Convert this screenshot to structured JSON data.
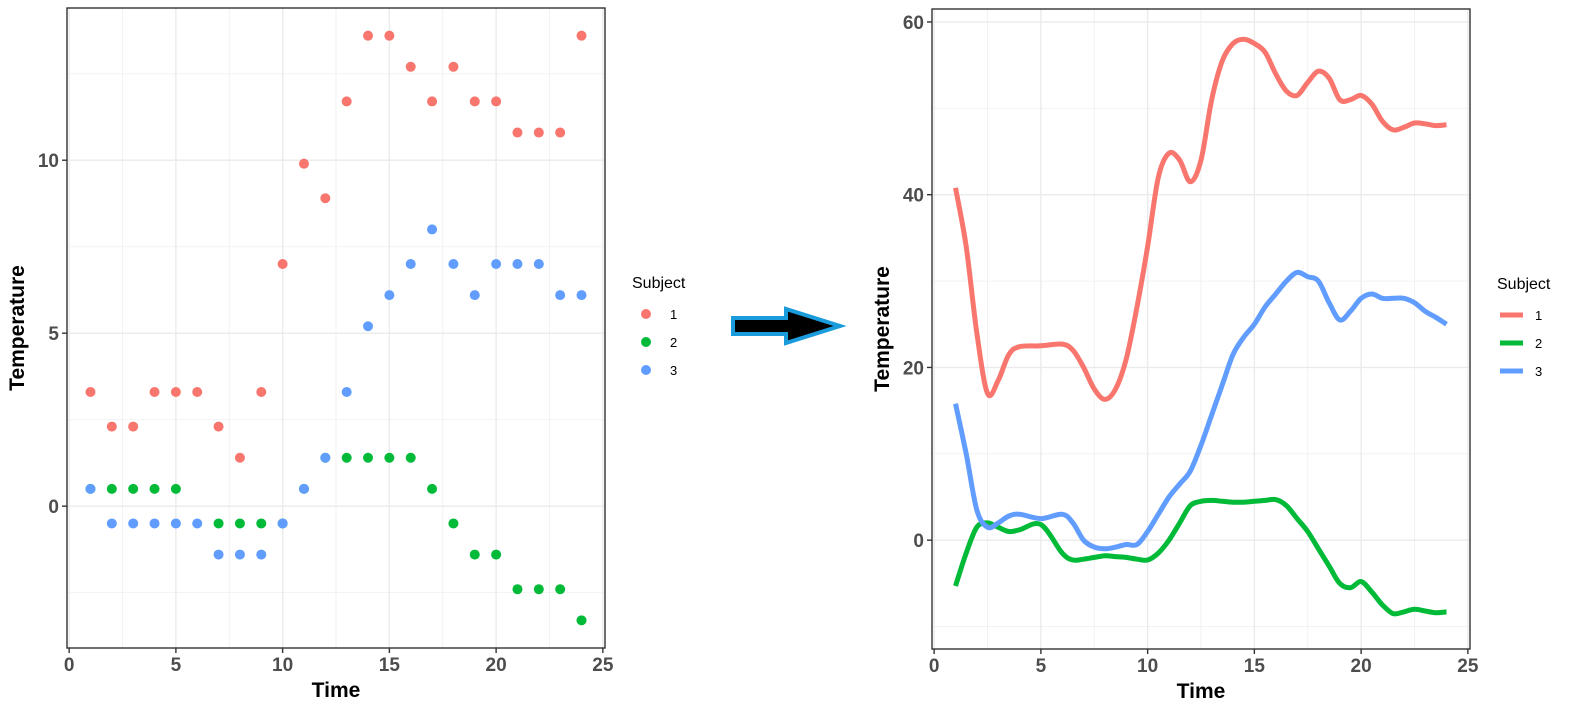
{
  "colors": {
    "1": "#F8766D",
    "2": "#00BA38",
    "3": "#619CFF"
  },
  "arrow": {
    "fill": "#000000",
    "stroke": "#1A9BDB"
  },
  "chart_data": [
    {
      "type": "scatter",
      "xlabel": "Time",
      "ylabel": "Temperature",
      "xlim": [
        -0.1,
        25.1
      ],
      "ylim": [
        -4.1,
        14.4
      ],
      "xticks": [
        0,
        5,
        10,
        15,
        20,
        25
      ],
      "yticks": [
        0,
        5,
        10
      ],
      "legend": {
        "title": "Subject",
        "position": "right",
        "labels": [
          "1",
          "2",
          "3"
        ]
      },
      "x": [
        1,
        2,
        3,
        4,
        5,
        6,
        7,
        8,
        9,
        10,
        11,
        12,
        13,
        14,
        15,
        16,
        17,
        18,
        19,
        20,
        21,
        22,
        23,
        24
      ],
      "series": [
        {
          "name": "1",
          "values": [
            3.3,
            2.3,
            2.3,
            3.3,
            3.3,
            3.3,
            2.3,
            1.4,
            3.3,
            7.0,
            9.9,
            8.9,
            11.7,
            13.6,
            13.6,
            12.7,
            11.7,
            12.7,
            11.7,
            11.7,
            10.8,
            10.8,
            10.8,
            13.6
          ]
        },
        {
          "name": "2",
          "values": [
            0.5,
            0.5,
            0.5,
            0.5,
            0.5,
            null,
            -0.5,
            -0.5,
            -0.5,
            -0.5,
            0.5,
            1.4,
            1.4,
            1.4,
            1.4,
            1.4,
            0.5,
            -0.5,
            -1.4,
            -1.4,
            -2.4,
            -2.4,
            -2.4,
            -3.3
          ]
        },
        {
          "name": "3",
          "values": [
            0.5,
            -0.5,
            -0.5,
            -0.5,
            -0.5,
            -0.5,
            -1.4,
            -1.4,
            -1.4,
            -0.5,
            0.5,
            1.4,
            3.3,
            5.2,
            6.1,
            7.0,
            8.0,
            7.0,
            6.1,
            7.0,
            7.0,
            7.0,
            6.1,
            6.1
          ]
        }
      ]
    },
    {
      "type": "line",
      "xlabel": "Time",
      "ylabel": "Temperature",
      "xlim": [
        -0.1,
        25.1
      ],
      "ylim": [
        -12.6,
        61.5
      ],
      "xticks": [
        0,
        5,
        10,
        15,
        20,
        25
      ],
      "yticks": [
        0,
        20,
        40,
        60
      ],
      "legend": {
        "title": "Subject",
        "position": "right",
        "labels": [
          "1",
          "2",
          "3"
        ]
      },
      "series": [
        {
          "name": "1",
          "x": [
            1,
            1.5,
            2,
            2.5,
            3,
            3.5,
            4,
            5,
            6,
            6.5,
            7,
            7.5,
            8,
            8.5,
            9,
            9.5,
            10,
            10.5,
            11,
            11.5,
            12,
            12.5,
            13,
            13.5,
            14,
            14.5,
            15,
            15.5,
            16,
            16.5,
            17,
            17.5,
            18,
            18.5,
            19,
            19.5,
            20,
            20.5,
            21,
            21.5,
            22,
            22.5,
            23,
            23.5,
            24
          ],
          "values": [
            40.8,
            34.0,
            24.0,
            17.0,
            18.5,
            21.5,
            22.4,
            22.5,
            22.7,
            22.0,
            20.0,
            17.5,
            16.3,
            17.5,
            21.0,
            27.0,
            34.0,
            42.0,
            44.8,
            44.0,
            41.5,
            44.0,
            51.0,
            55.5,
            57.5,
            58.0,
            57.5,
            56.5,
            54.0,
            52.0,
            51.5,
            53.0,
            54.3,
            53.5,
            51.0,
            51.0,
            51.5,
            50.5,
            48.5,
            47.5,
            47.8,
            48.3,
            48.2,
            48.0,
            48.1
          ]
        },
        {
          "name": "2",
          "x": [
            1,
            1.5,
            2,
            2.5,
            3,
            3.5,
            4,
            5,
            6,
            6.5,
            7,
            7.5,
            8,
            8.5,
            9,
            9.5,
            10,
            10.5,
            11,
            11.5,
            12,
            12.5,
            13,
            13.5,
            14,
            14.5,
            15,
            15.5,
            16,
            16.5,
            17,
            17.5,
            18,
            18.5,
            19,
            19.5,
            20,
            20.5,
            21,
            21.5,
            22,
            22.5,
            23,
            23.5,
            24
          ],
          "values": [
            -5.3,
            -1.5,
            1.5,
            2.0,
            1.5,
            1.0,
            1.2,
            1.8,
            -1.5,
            -2.3,
            -2.2,
            -2.0,
            -1.8,
            -1.9,
            -2.0,
            -2.2,
            -2.3,
            -1.5,
            0.0,
            2.0,
            4.0,
            4.5,
            4.6,
            4.5,
            4.4,
            4.4,
            4.5,
            4.6,
            4.7,
            4.0,
            2.5,
            1.0,
            -1.0,
            -3.0,
            -5.0,
            -5.5,
            -4.8,
            -6.0,
            -7.5,
            -8.5,
            -8.3,
            -8.0,
            -8.2,
            -8.4,
            -8.3
          ]
        },
        {
          "name": "3",
          "x": [
            1,
            1.5,
            2,
            2.5,
            3,
            3.5,
            4,
            5,
            6,
            6.5,
            7,
            7.5,
            8,
            8.5,
            9,
            9.5,
            10,
            10.5,
            11,
            11.5,
            12,
            12.5,
            13,
            13.5,
            14,
            14.5,
            15,
            15.5,
            16,
            16.5,
            17,
            17.5,
            18,
            18.5,
            19,
            19.5,
            20,
            20.5,
            21,
            21.5,
            22,
            22.5,
            23,
            23.5,
            24
          ],
          "values": [
            15.8,
            10.0,
            3.5,
            1.5,
            2.0,
            2.8,
            3.0,
            2.5,
            3.0,
            2.0,
            0.0,
            -0.8,
            -1.0,
            -0.8,
            -0.5,
            -0.5,
            1.0,
            3.0,
            5.0,
            6.5,
            8.0,
            11.0,
            14.5,
            18.0,
            21.5,
            23.5,
            25.0,
            27.0,
            28.5,
            30.0,
            31.0,
            30.5,
            30.0,
            27.5,
            25.5,
            26.5,
            28.0,
            28.5,
            28.0,
            28.0,
            28.0,
            27.5,
            26.5,
            25.8,
            25.0
          ]
        }
      ]
    }
  ]
}
